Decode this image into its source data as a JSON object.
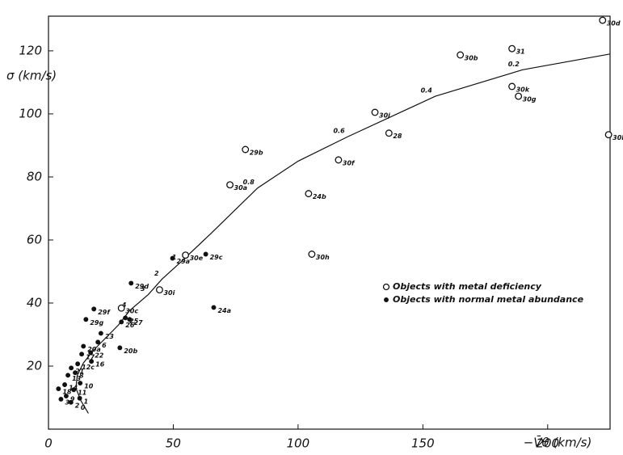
{
  "chart_data": {
    "type": "scatter",
    "y_label": "σ (km/s)",
    "x_label": "−V̄θ (km/s)",
    "xlim": [
      0,
      225
    ],
    "ylim": [
      0,
      131
    ],
    "xticks": [
      0,
      50,
      100,
      150,
      200
    ],
    "yticks": [
      20,
      40,
      60,
      80,
      100,
      120
    ],
    "legend_position": "center-right",
    "series": [
      {
        "name": "Objects with metal deficiency",
        "marker": "open",
        "color": "#111111",
        "x": [
          222,
          165,
          185.7,
          185.7,
          188.3,
          224.4,
          130.8,
          136.4,
          116.2,
          78.9,
          72.7,
          104.2,
          105.5,
          54.9,
          44.5,
          29.2
        ],
        "y": [
          129.7,
          118.7,
          120.7,
          108.7,
          105.6,
          93.4,
          100.5,
          93.9,
          85.4,
          88.7,
          77.5,
          74.7,
          55.5,
          55.2,
          44.2,
          38.4
        ],
        "point_labels": [
          "30d",
          "30b",
          "31",
          "30k",
          "30g",
          "30l",
          "30j",
          "28",
          "30f",
          "29b",
          "30a",
          "24b",
          "30h",
          "30e",
          "30i",
          "30c"
        ]
      },
      {
        "name": "Objects with normal metal abundance",
        "marker": "filled",
        "color": "#111111",
        "x": [
          49.7,
          63,
          33.1,
          66.2,
          18.2,
          15,
          28.6,
          30.8,
          32.5,
          29.2,
          21,
          19.8,
          16.9,
          17.2,
          14,
          13.3,
          11.7,
          9.1,
          10.7,
          7.8,
          12.7,
          10.1,
          6.5,
          7.1,
          4,
          5,
          12.5,
          9
        ],
        "y": [
          54.2,
          55.5,
          46.3,
          38.6,
          38.1,
          34.8,
          25.8,
          35.3,
          34.8,
          34.0,
          30.4,
          27.6,
          24.3,
          21.5,
          26.3,
          23.8,
          20.7,
          19.4,
          17.9,
          17.1,
          14.6,
          12.5,
          14.1,
          10.5,
          12.8,
          9.5,
          9.8,
          8.5
        ],
        "point_labels": [
          "29a",
          "29c",
          "29d",
          "24a",
          "29f",
          "29g",
          "20b",
          "25",
          "27",
          "26",
          "23",
          "6",
          "22",
          "16",
          "20a",
          "17",
          "12c",
          "21",
          "8",
          "13",
          "10",
          "11",
          "14",
          "9",
          "18",
          "3",
          "1",
          "2"
        ]
      }
    ],
    "curve": {
      "x": [
        16,
        13,
        11,
        11.5,
        14,
        18,
        23,
        28,
        32.5,
        40,
        45.5,
        52.6,
        65,
        83.8,
        100,
        120,
        155,
        190,
        225
      ],
      "y": [
        5,
        9,
        13,
        17,
        21,
        25,
        29,
        33,
        37.6,
        42.7,
        47.6,
        52.7,
        62,
        76.5,
        85,
        92.8,
        105.6,
        114,
        119
      ],
      "point_labels": [
        "0",
        null,
        null,
        null,
        null,
        null,
        null,
        null,
        "4",
        "3",
        "2",
        "1",
        null,
        "0.8",
        null,
        "0.6",
        "0.4",
        "0.2",
        null
      ]
    }
  }
}
